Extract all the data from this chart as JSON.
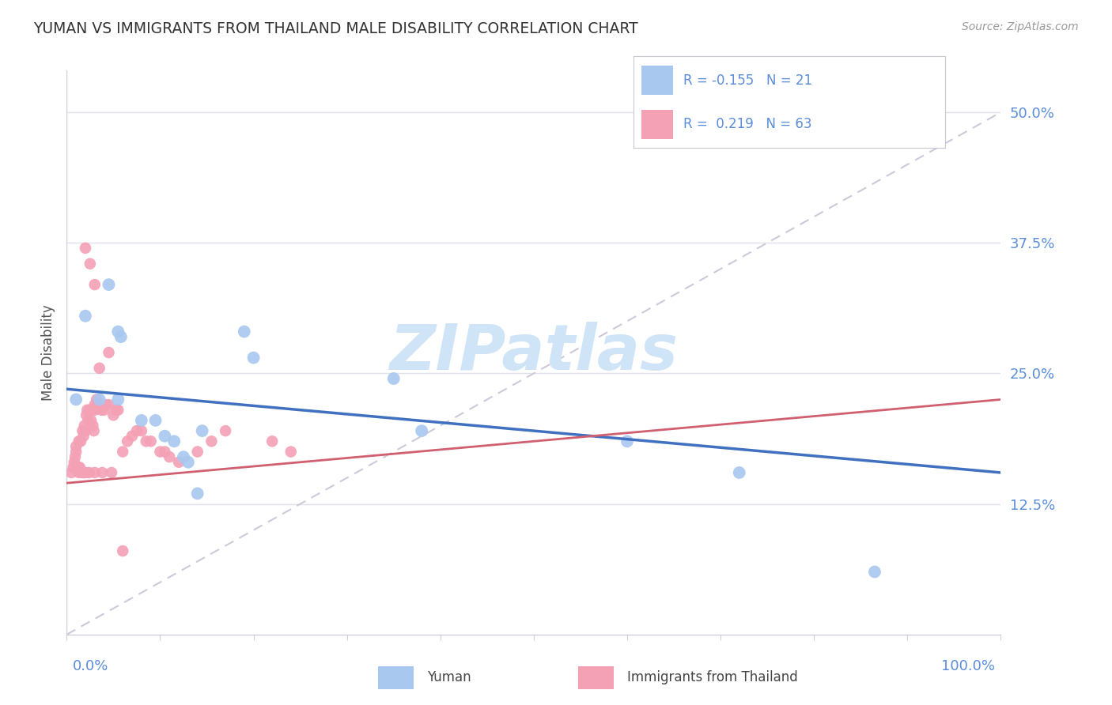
{
  "title": "YUMAN VS IMMIGRANTS FROM THAILAND MALE DISABILITY CORRELATION CHART",
  "source": "Source: ZipAtlas.com",
  "ylabel": "Male Disability",
  "ytick_labels": [
    "12.5%",
    "25.0%",
    "37.5%",
    "50.0%"
  ],
  "ytick_values": [
    0.125,
    0.25,
    0.375,
    0.5
  ],
  "xlim": [
    0.0,
    1.0
  ],
  "ylim": [
    0.0,
    0.54
  ],
  "yuman_color": "#A8C8F0",
  "thailand_color": "#F4A0B5",
  "yuman_line_color": "#4070C0",
  "thailand_line_color": "#D06070",
  "watermark_color": "#D0E4F8",
  "background_color": "#FFFFFF",
  "grid_color": "#E0E0E8",
  "spine_color": "#D0D0D8",
  "yuman_points_x": [
    0.02,
    0.045,
    0.055,
    0.058,
    0.01,
    0.035,
    0.055,
    0.08,
    0.095,
    0.105,
    0.115,
    0.125,
    0.13,
    0.145,
    0.14,
    0.19,
    0.2,
    0.35,
    0.38,
    0.6,
    0.72,
    0.865
  ],
  "yuman_points_y": [
    0.305,
    0.335,
    0.29,
    0.285,
    0.225,
    0.225,
    0.225,
    0.205,
    0.205,
    0.19,
    0.185,
    0.17,
    0.165,
    0.195,
    0.135,
    0.29,
    0.265,
    0.245,
    0.195,
    0.185,
    0.155,
    0.06
  ],
  "thailand_points_x": [
    0.005,
    0.007,
    0.008,
    0.009,
    0.01,
    0.01,
    0.012,
    0.013,
    0.013,
    0.014,
    0.015,
    0.016,
    0.017,
    0.018,
    0.018,
    0.019,
    0.02,
    0.02,
    0.021,
    0.022,
    0.023,
    0.024,
    0.025,
    0.026,
    0.027,
    0.028,
    0.029,
    0.03,
    0.03,
    0.03,
    0.032,
    0.033,
    0.035,
    0.037,
    0.038,
    0.04,
    0.042,
    0.045,
    0.048,
    0.05,
    0.053,
    0.055,
    0.06,
    0.065,
    0.07,
    0.075,
    0.08,
    0.085,
    0.09,
    0.1,
    0.105,
    0.11,
    0.12,
    0.14,
    0.155,
    0.17,
    0.22,
    0.24,
    0.02,
    0.025,
    0.03,
    0.045,
    0.06
  ],
  "thailand_points_y": [
    0.155,
    0.16,
    0.165,
    0.17,
    0.175,
    0.18,
    0.16,
    0.185,
    0.155,
    0.16,
    0.185,
    0.155,
    0.195,
    0.19,
    0.155,
    0.2,
    0.195,
    0.155,
    0.21,
    0.215,
    0.205,
    0.155,
    0.215,
    0.205,
    0.215,
    0.2,
    0.195,
    0.22,
    0.215,
    0.155,
    0.225,
    0.22,
    0.255,
    0.215,
    0.155,
    0.215,
    0.22,
    0.22,
    0.155,
    0.21,
    0.215,
    0.215,
    0.175,
    0.185,
    0.19,
    0.195,
    0.195,
    0.185,
    0.185,
    0.175,
    0.175,
    0.17,
    0.165,
    0.175,
    0.185,
    0.195,
    0.185,
    0.175,
    0.37,
    0.355,
    0.335,
    0.27,
    0.08
  ],
  "yuman_trend_x": [
    0.0,
    1.0
  ],
  "yuman_trend_y": [
    0.235,
    0.155
  ],
  "thailand_trend_x": [
    0.0,
    1.0
  ],
  "thailand_trend_y": [
    0.145,
    0.225
  ],
  "diag_line_color": "#C8C8CC",
  "xtick_positions": [
    0.0,
    0.1,
    0.2,
    0.3,
    0.4,
    0.5,
    0.6,
    0.7,
    0.8,
    0.9,
    1.0
  ],
  "legend_bottom_labels": [
    "Yuman",
    "Immigrants from Thailand"
  ]
}
